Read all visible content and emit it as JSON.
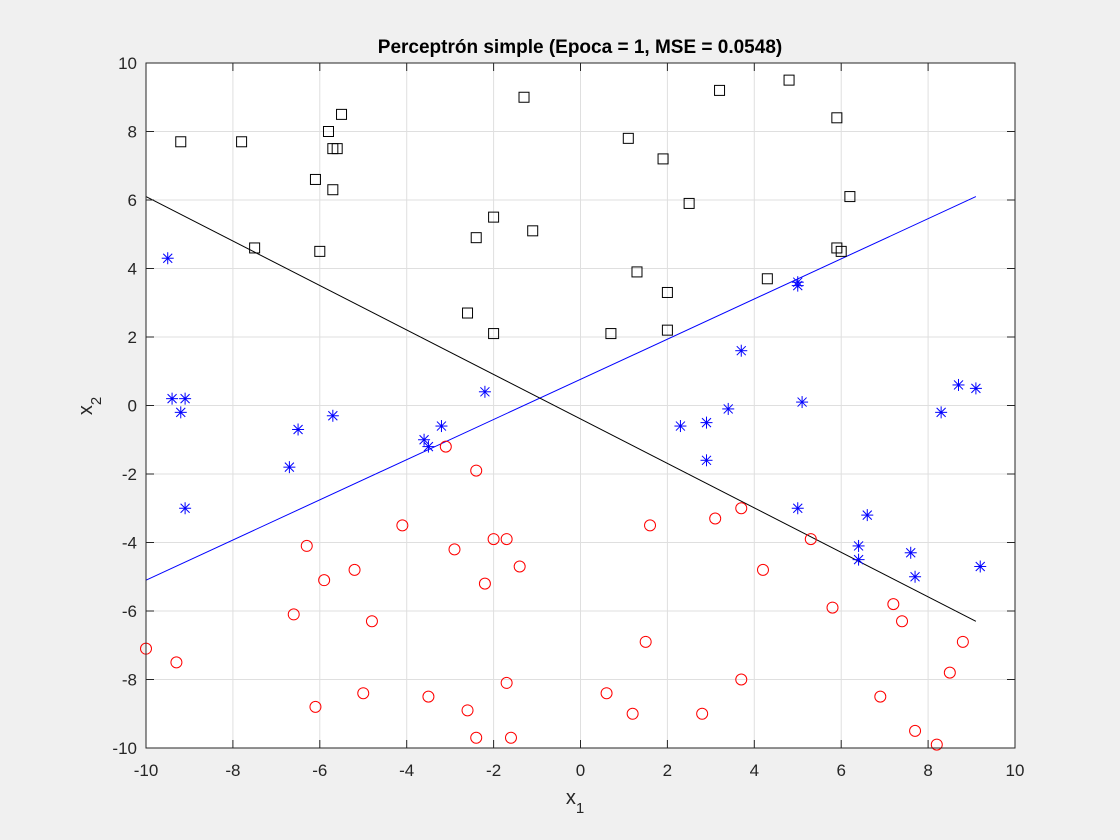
{
  "figure": {
    "background": "#f0f0f0",
    "axes_background": "#ffffff"
  },
  "chart_data": {
    "type": "scatter",
    "title": "Perceptrón simple (Epoca = 1, MSE = 0.0548)",
    "xlabel": {
      "base": "x",
      "sub": "1"
    },
    "ylabel": {
      "base": "x",
      "sub": "2"
    },
    "xlim": [
      -10,
      10
    ],
    "ylim": [
      -10,
      10
    ],
    "xticks": [
      -10,
      -8,
      -6,
      -4,
      -2,
      0,
      2,
      4,
      6,
      8,
      10
    ],
    "yticks": [
      -10,
      -8,
      -6,
      -4,
      -2,
      0,
      2,
      4,
      6,
      8,
      10
    ],
    "grid": true,
    "series": [
      {
        "marker": "square",
        "color": "#000000",
        "points": [
          [
            -9.2,
            7.7
          ],
          [
            -7.8,
            7.7
          ],
          [
            -7.5,
            4.6
          ],
          [
            -6.1,
            6.6
          ],
          [
            -5.8,
            8.0
          ],
          [
            -5.7,
            7.5
          ],
          [
            -5.6,
            7.5
          ],
          [
            -5.5,
            8.5
          ],
          [
            -5.7,
            6.3
          ],
          [
            -6.0,
            4.5
          ],
          [
            -2.0,
            5.5
          ],
          [
            -2.4,
            4.9
          ],
          [
            -1.1,
            5.1
          ],
          [
            -1.3,
            9.0
          ],
          [
            -2.6,
            2.7
          ],
          [
            -2.0,
            2.1
          ],
          [
            0.7,
            2.1
          ],
          [
            1.1,
            7.8
          ],
          [
            1.3,
            3.9
          ],
          [
            1.9,
            7.2
          ],
          [
            2.0,
            3.3
          ],
          [
            2.0,
            2.2
          ],
          [
            2.5,
            5.9
          ],
          [
            3.2,
            9.2
          ],
          [
            4.3,
            3.7
          ],
          [
            4.8,
            9.5
          ],
          [
            5.9,
            8.4
          ],
          [
            5.9,
            4.6
          ],
          [
            6.0,
            4.5
          ],
          [
            6.2,
            6.1
          ]
        ]
      },
      {
        "marker": "circle",
        "color": "#ff0000",
        "points": [
          [
            -10.0,
            -7.1
          ],
          [
            -9.3,
            -7.5
          ],
          [
            -6.6,
            -6.1
          ],
          [
            -6.3,
            -4.1
          ],
          [
            -6.1,
            -8.8
          ],
          [
            -5.9,
            -5.1
          ],
          [
            -5.0,
            -8.4
          ],
          [
            -5.2,
            -4.8
          ],
          [
            -4.8,
            -6.3
          ],
          [
            -4.1,
            -3.5
          ],
          [
            -3.5,
            -8.5
          ],
          [
            -3.1,
            -1.2
          ],
          [
            -2.9,
            -4.2
          ],
          [
            -2.6,
            -8.9
          ],
          [
            -2.4,
            -9.7
          ],
          [
            -2.4,
            -1.9
          ],
          [
            -2.2,
            -5.2
          ],
          [
            -2.0,
            -3.9
          ],
          [
            -1.7,
            -3.9
          ],
          [
            -1.6,
            -9.7
          ],
          [
            -1.7,
            -8.1
          ],
          [
            -1.4,
            -4.7
          ],
          [
            0.6,
            -8.4
          ],
          [
            1.2,
            -9.0
          ],
          [
            1.5,
            -6.9
          ],
          [
            1.6,
            -3.5
          ],
          [
            2.8,
            -9.0
          ],
          [
            3.1,
            -3.3
          ],
          [
            3.7,
            -3.0
          ],
          [
            3.7,
            -8.0
          ],
          [
            4.2,
            -4.8
          ],
          [
            5.3,
            -3.9
          ],
          [
            5.8,
            -5.9
          ],
          [
            6.9,
            -8.5
          ],
          [
            7.2,
            -5.8
          ],
          [
            7.4,
            -6.3
          ],
          [
            7.7,
            -9.5
          ],
          [
            8.2,
            -9.9
          ],
          [
            8.5,
            -7.8
          ],
          [
            8.8,
            -6.9
          ]
        ]
      },
      {
        "marker": "star",
        "color": "#0000ff",
        "points": [
          [
            -9.5,
            4.3
          ],
          [
            -9.4,
            0.2
          ],
          [
            -9.2,
            -0.2
          ],
          [
            -9.1,
            0.2
          ],
          [
            -9.1,
            -3.0
          ],
          [
            -6.7,
            -1.8
          ],
          [
            -6.5,
            -0.7
          ],
          [
            -5.7,
            -0.3
          ],
          [
            -3.6,
            -1.0
          ],
          [
            -3.5,
            -1.2
          ],
          [
            -3.2,
            -0.6
          ],
          [
            -2.2,
            0.4
          ],
          [
            2.3,
            -0.6
          ],
          [
            2.9,
            -0.5
          ],
          [
            2.9,
            -1.6
          ],
          [
            3.4,
            -0.1
          ],
          [
            3.7,
            1.6
          ],
          [
            5.0,
            3.6
          ],
          [
            5.0,
            3.5
          ],
          [
            5.0,
            -3.0
          ],
          [
            5.1,
            0.1
          ],
          [
            6.4,
            -4.1
          ],
          [
            6.4,
            -4.5
          ],
          [
            6.6,
            -3.2
          ],
          [
            7.6,
            -4.3
          ],
          [
            7.7,
            -5.0
          ],
          [
            8.3,
            -0.2
          ],
          [
            8.7,
            0.6
          ],
          [
            9.1,
            0.5
          ],
          [
            9.2,
            -4.7
          ]
        ]
      }
    ],
    "lines": [
      {
        "color": "#0000ff",
        "x": [
          -10,
          9.1
        ],
        "y": [
          -5.1,
          6.1
        ]
      },
      {
        "color": "#000000",
        "x": [
          -10,
          9.1
        ],
        "y": [
          6.1,
          -6.3
        ]
      }
    ]
  }
}
